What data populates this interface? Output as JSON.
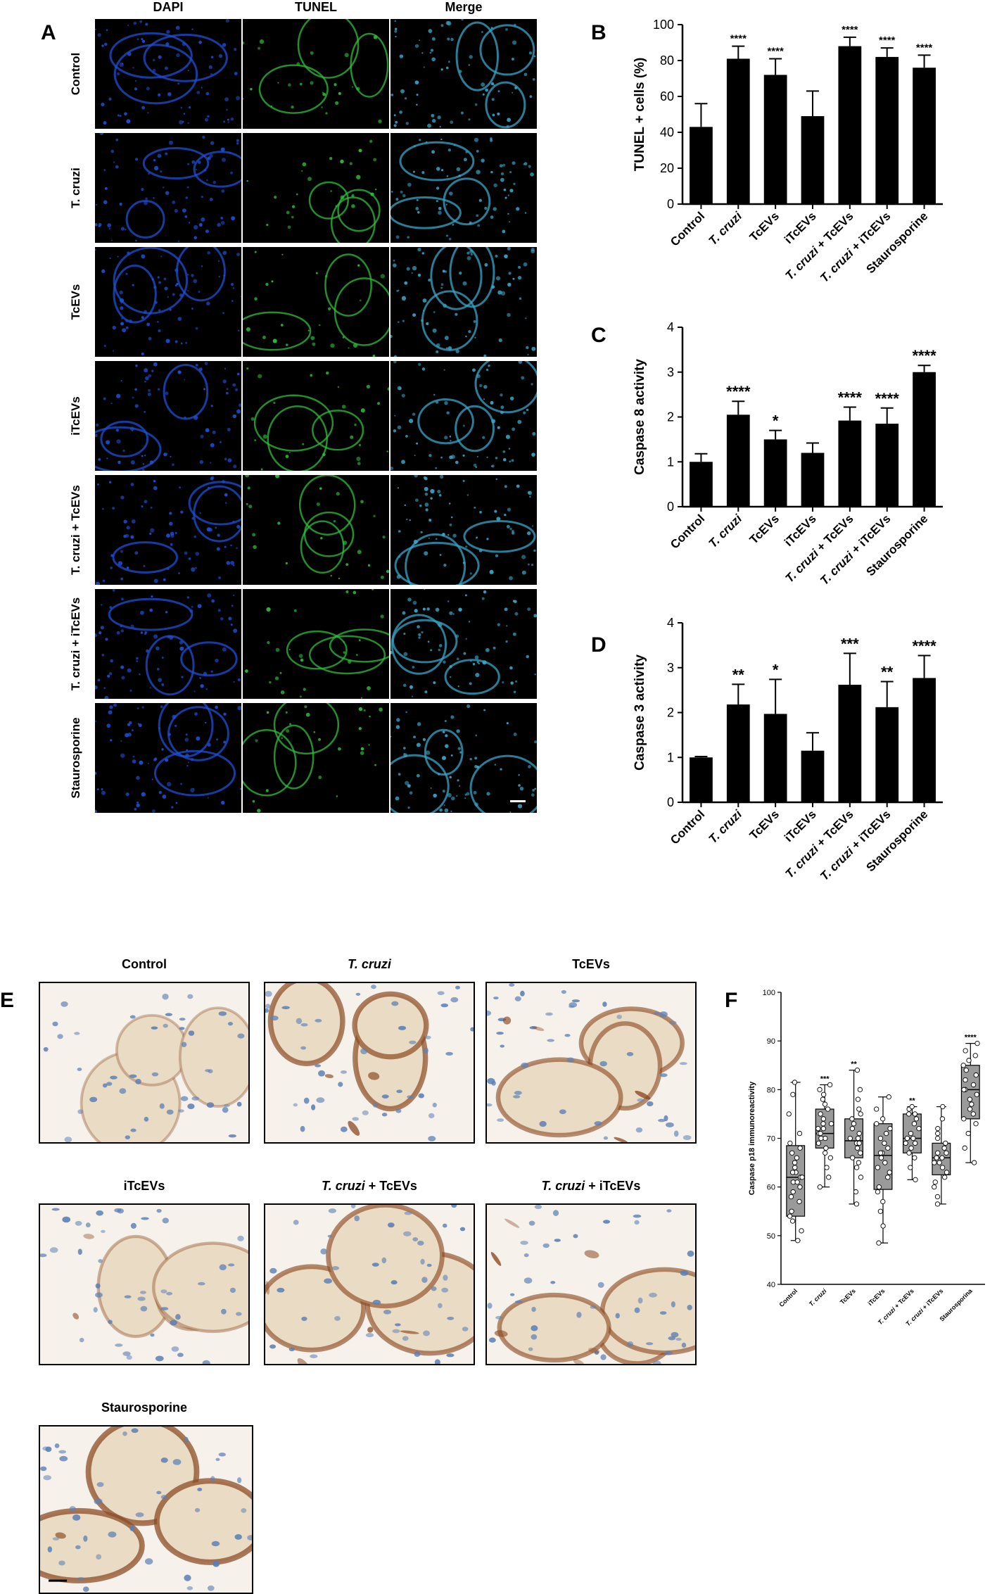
{
  "panels": {
    "A": "A",
    "B": "B",
    "C": "C",
    "D": "D",
    "E": "E",
    "F": "F"
  },
  "panelA": {
    "columns": [
      "DAPI",
      "TUNEL",
      "Merge"
    ],
    "rows": [
      "Control",
      "T. cruzi",
      "TcEVs",
      "iTcEVs",
      "T. cruzi + TcEVs",
      "T. cruzi + iTcEVs",
      "Staurosporine"
    ],
    "colors": {
      "dapi": "#1f4fd6",
      "tunel": "#2fbf3a",
      "merge": "#3aa6c9"
    }
  },
  "panelE": {
    "titles": [
      "Control",
      "T. cruzi",
      "TcEVs",
      "iTcEVs",
      "T. cruzi + TcEVs",
      "T. cruzi + iTcEVs",
      "Staurosporine"
    ],
    "colors": {
      "stain": "#8b4a22",
      "nuclei": "#5b7fb5",
      "background": "#f6f1ea"
    }
  },
  "chart_data": [
    {
      "id": "B",
      "type": "bar",
      "categories": [
        "Control",
        "T. cruzi",
        "TcEVs",
        "iTcEVs",
        "T. cruzi + TcEVs",
        "T. cruzi + iTcEVs",
        "Staurosporine"
      ],
      "values": [
        43,
        81,
        72,
        49,
        88,
        82,
        76
      ],
      "errors": [
        13,
        7,
        9,
        14,
        5,
        5,
        7
      ],
      "significance": [
        "",
        "****",
        "****",
        "",
        "****",
        "****",
        "****"
      ],
      "ylabel": "TUNEL + cells (%)",
      "ylim": [
        0,
        100
      ],
      "yticks": [
        0,
        20,
        40,
        60,
        80,
        100
      ],
      "bar_color": "#000000"
    },
    {
      "id": "C",
      "type": "bar",
      "categories": [
        "Control",
        "T. cruzi",
        "TcEVs",
        "iTcEVs",
        "T. cruzi + TcEVs",
        "T. cruzi + iTcEVs",
        "Staurosporine"
      ],
      "values": [
        1.0,
        2.05,
        1.5,
        1.2,
        1.92,
        1.85,
        3.0
      ],
      "errors": [
        0.18,
        0.3,
        0.2,
        0.22,
        0.3,
        0.35,
        0.15
      ],
      "significance": [
        "",
        "****",
        "*",
        "",
        "****",
        "****",
        "****"
      ],
      "ylabel": "Caspase 8 activity",
      "ylim": [
        0,
        4
      ],
      "yticks": [
        0,
        1,
        2,
        3,
        4
      ],
      "bar_color": "#000000"
    },
    {
      "id": "D",
      "type": "bar",
      "categories": [
        "Control",
        "T. cruzi",
        "TcEVs",
        "iTcEVs",
        "T. cruzi + TcEVs",
        "T. cruzi + iTcEVs",
        "Staurosporine"
      ],
      "values": [
        1.0,
        2.18,
        1.97,
        1.15,
        2.62,
        2.12,
        2.77
      ],
      "errors": [
        0.02,
        0.45,
        0.77,
        0.4,
        0.7,
        0.57,
        0.5
      ],
      "significance": [
        "",
        "**",
        "*",
        "",
        "***",
        "**",
        "****"
      ],
      "ylabel": "Caspase 3 activity",
      "ylim": [
        0,
        4
      ],
      "yticks": [
        0,
        1,
        2,
        3,
        4
      ],
      "bar_color": "#000000"
    },
    {
      "id": "F",
      "type": "box",
      "categories": [
        "Control",
        "T. cruzi",
        "TcEVs",
        "iTcEVs",
        "T. cruzi + TcEVs",
        "T. cruzi + iTcEVs",
        "Staurosporina"
      ],
      "boxes": [
        {
          "min": 49,
          "q1": 54,
          "median": 62,
          "q3": 68.5,
          "max": 81.5
        },
        {
          "min": 60,
          "q1": 68,
          "median": 71,
          "q3": 76,
          "max": 81
        },
        {
          "min": 56.5,
          "q1": 66,
          "median": 69.5,
          "q3": 74,
          "max": 84
        },
        {
          "min": 48.5,
          "q1": 59.5,
          "median": 66.5,
          "q3": 73,
          "max": 78.5
        },
        {
          "min": 61.5,
          "q1": 67,
          "median": 70,
          "q3": 75,
          "max": 76.5
        },
        {
          "min": 56.5,
          "q1": 62.5,
          "median": 66,
          "q3": 69,
          "max": 76.5
        },
        {
          "min": 65,
          "q1": 74,
          "median": 80,
          "q3": 85,
          "max": 89.5
        }
      ],
      "points": [
        [
          49,
          51,
          53,
          54,
          55,
          57,
          58,
          59,
          60,
          61,
          61,
          62,
          62,
          63,
          63,
          64,
          65,
          66,
          67,
          68,
          69,
          71,
          75,
          79,
          81.5
        ],
        [
          60,
          62,
          64,
          66,
          67,
          68,
          69,
          70,
          70,
          71,
          71,
          72,
          72,
          73,
          73,
          74,
          75,
          76,
          77,
          78,
          79,
          80,
          81
        ],
        [
          56.5,
          59,
          62,
          64,
          65,
          66,
          67,
          68,
          69,
          69,
          70,
          70,
          71,
          72,
          73,
          74,
          75,
          76,
          78,
          80,
          84
        ],
        [
          48.5,
          52,
          55,
          57,
          59,
          60,
          62,
          63,
          64,
          65,
          66,
          67,
          67,
          68,
          69,
          70,
          71,
          72,
          73,
          74,
          76,
          78.5
        ],
        [
          61.5,
          64,
          66,
          67,
          68,
          69,
          69,
          70,
          70,
          71,
          72,
          73,
          74,
          75,
          75,
          76,
          76.5
        ],
        [
          56.5,
          58,
          60,
          61,
          62,
          63,
          64,
          65,
          65,
          66,
          66,
          67,
          67,
          68,
          69,
          70,
          71,
          72,
          74,
          76.5
        ],
        [
          65,
          68,
          71,
          73,
          74,
          75,
          76,
          77,
          78,
          79,
          80,
          80,
          81,
          82,
          83,
          84,
          85,
          86,
          87,
          88,
          89.5
        ]
      ],
      "significance": [
        "",
        "***",
        "**",
        "",
        "**",
        "",
        "****"
      ],
      "ylabel": "Caspase p18 immunoreactivity",
      "ylim": [
        40,
        100
      ],
      "yticks": [
        40,
        50,
        60,
        70,
        80,
        90,
        100
      ],
      "box_color": "#9a9a9a"
    }
  ]
}
